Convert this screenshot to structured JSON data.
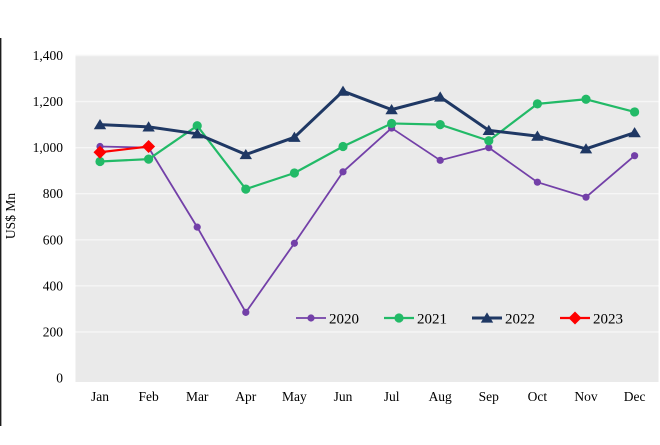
{
  "figure": {
    "background": "#ffffff",
    "plot_background": "#eaeaea",
    "gridline_color": "#f6f6f6",
    "border_color": "#1c1c1c",
    "text_color": "#000000"
  },
  "chart_data": {
    "type": "line",
    "title": "",
    "xlabel": "",
    "ylabel": "US$ Mn",
    "categories": [
      "Jan",
      "Feb",
      "Mar",
      "Apr",
      "May",
      "Jun",
      "Jul",
      "Aug",
      "Sep",
      "Oct",
      "Nov",
      "Dec"
    ],
    "y_ticks": [
      0,
      200,
      400,
      600,
      800,
      1000,
      1200,
      1400
    ],
    "y_tick_labels": [
      "0",
      "200",
      "400",
      "600",
      "800",
      "1,000",
      "1,200",
      "1,400"
    ],
    "ylim": [
      0,
      1400
    ],
    "grid": true,
    "legend_position": "inside-bottom",
    "legend_entries": [
      "2020",
      "2021",
      "2022",
      "2023"
    ],
    "series": [
      {
        "name": "2020",
        "color": "#7340a8",
        "marker": "circle",
        "values": [
          1005,
          1000,
          655,
          285,
          585,
          895,
          1085,
          945,
          1000,
          850,
          785,
          965
        ]
      },
      {
        "name": "2021",
        "color": "#22ba67",
        "marker": "circle",
        "values": [
          940,
          950,
          1095,
          820,
          890,
          1005,
          1105,
          1100,
          1030,
          1190,
          1210,
          1155
        ]
      },
      {
        "name": "2022",
        "color": "#1f3864",
        "marker": "triangle",
        "values": [
          1100,
          1090,
          1060,
          970,
          1045,
          1245,
          1165,
          1220,
          1075,
          1050,
          995,
          1065
        ]
      },
      {
        "name": "2023",
        "color": "#fe0000",
        "marker": "diamond",
        "values": [
          980,
          1005,
          null,
          null,
          null,
          null,
          null,
          null,
          null,
          null,
          null,
          null
        ]
      }
    ]
  }
}
